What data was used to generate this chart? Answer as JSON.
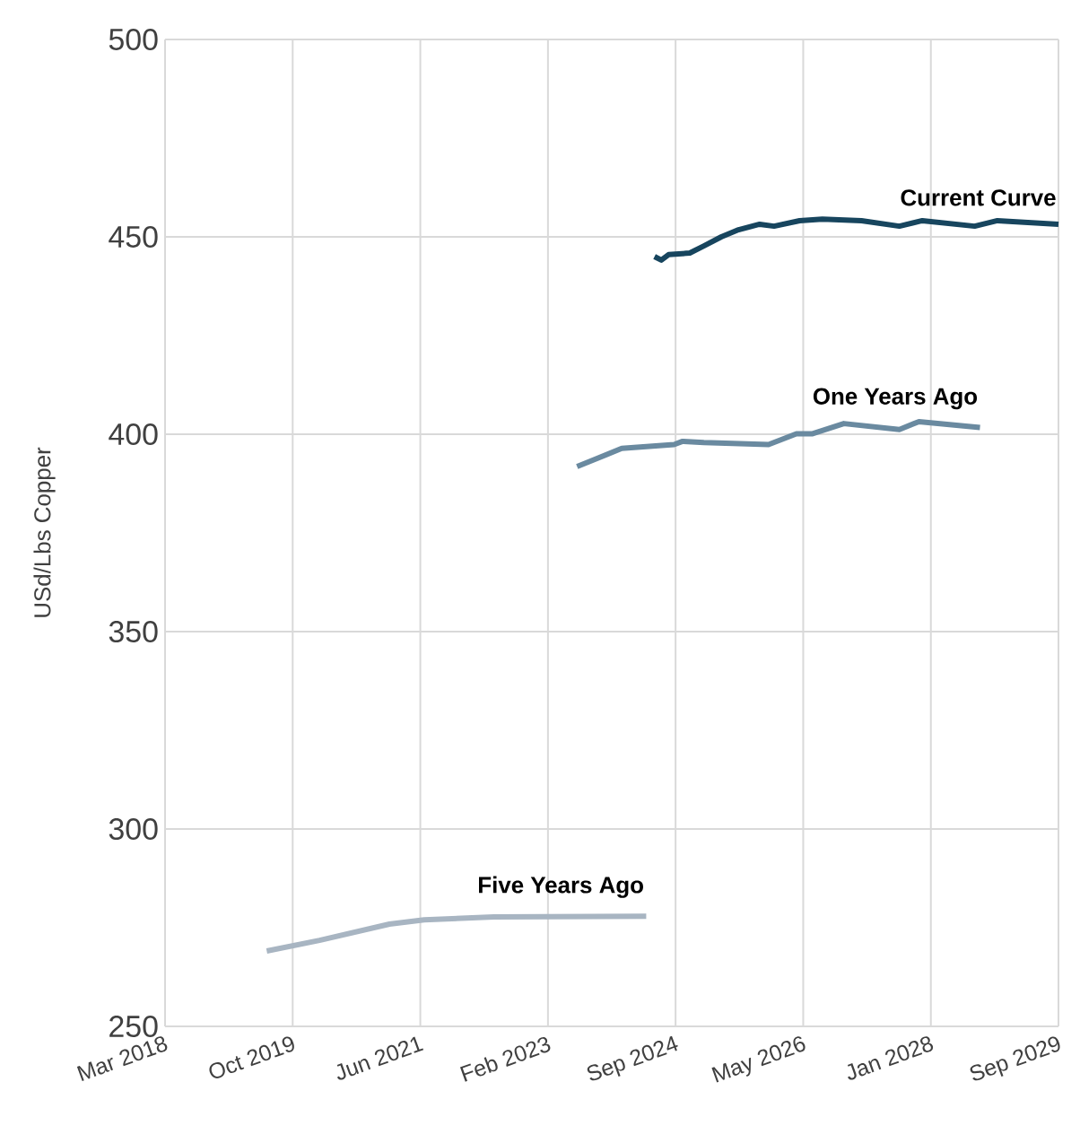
{
  "chart_data": {
    "type": "line",
    "ylabel": "USd/Lbs Copper",
    "xlim": [
      "2018-03-03",
      "2029-09-01"
    ],
    "xticks": [
      {
        "value": "2018-03-03",
        "label": "Mar 2018"
      },
      {
        "value": "2019-10-24",
        "label": "Oct 2019"
      },
      {
        "value": "2021-06-15",
        "label": "Jun 2021"
      },
      {
        "value": "2023-02-05",
        "label": "Feb 2023"
      },
      {
        "value": "2024-09-27",
        "label": "Sep 2024"
      },
      {
        "value": "2026-05-20",
        "label": "May 2026"
      },
      {
        "value": "2028-01-10",
        "label": "Jan 2028"
      },
      {
        "value": "2029-09-01",
        "label": "Sep 2029"
      }
    ],
    "ylim": [
      250,
      500
    ],
    "yticks": [
      250,
      300,
      350,
      400,
      450,
      500
    ],
    "grid": true,
    "legend": false,
    "marker": "none",
    "line_style": "solid",
    "series": [
      {
        "name": "Current Curve",
        "color": "#17455e",
        "x": [
          "2024-06-20",
          "2024-07-22",
          "2024-08-25",
          "2024-12-03",
          "2025-02-07",
          "2025-04-30",
          "2025-07-20",
          "2025-10-27",
          "2026-01-03",
          "2026-05-03",
          "2026-08-18",
          "2027-02-18",
          "2027-08-15",
          "2027-12-01",
          "2028-08-03",
          "2028-11-18",
          "2029-09-01"
        ],
        "values": [
          445,
          444.1,
          445.5,
          445.9,
          447.7,
          450,
          451.8,
          453.2,
          452.7,
          454.1,
          454.5,
          454.1,
          452.7,
          454.1,
          452.7,
          454.1,
          453.2
        ]
      },
      {
        "name": "One Years Ago",
        "color": "#6a8aa0",
        "x": [
          "2023-06-22",
          "2024-01-18",
          "2024-09-20",
          "2024-10-30",
          "2025-02-07",
          "2025-12-08",
          "2026-04-18",
          "2026-06-30",
          "2026-11-27",
          "2027-08-15",
          "2027-11-15",
          "2028-08-28"
        ],
        "values": [
          391.8,
          396.4,
          397.4,
          398.2,
          397.9,
          397.4,
          400.1,
          400.1,
          402.7,
          401.2,
          403.2,
          401.7
        ]
      },
      {
        "name": "Five Years Ago",
        "color": "#a8b5c2",
        "x": [
          "2019-06-24",
          "2020-02-27",
          "2021-01-21",
          "2021-07-03",
          "2022-05-27",
          "2024-05-12"
        ],
        "values": [
          269.1,
          271.8,
          275.9,
          277,
          277.7,
          277.9
        ]
      }
    ]
  }
}
